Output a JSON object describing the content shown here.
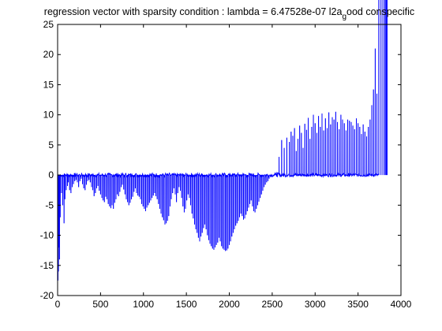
{
  "chart_data": {
    "type": "line",
    "title": {
      "main": "regression vector with sparsity condition : lambda = 6.47528e-07 l2a",
      "subscript": "g",
      "tail": "ood conspecific"
    },
    "xlabel": "",
    "ylabel": "",
    "xlim": [
      0,
      4000
    ],
    "ylim": [
      -20,
      25
    ],
    "xticks": [
      0,
      500,
      1000,
      1500,
      2000,
      2500,
      3000,
      3500,
      4000
    ],
    "yticks": [
      -20,
      -15,
      -10,
      -5,
      0,
      5,
      10,
      15,
      20,
      25
    ],
    "grid": false,
    "legend": "none",
    "series": [
      {
        "color": "#0000ff",
        "spike_x": [
          5,
          10,
          15,
          22,
          30,
          45,
          60,
          75,
          85,
          100,
          115,
          125,
          140,
          155,
          170,
          185,
          200,
          215,
          230,
          245,
          260,
          275,
          290,
          305,
          320,
          335,
          350,
          365,
          380,
          395,
          410,
          425,
          440,
          455,
          470,
          485,
          500,
          515,
          530,
          545,
          560,
          575,
          590,
          605,
          620,
          635,
          650,
          665,
          680,
          695,
          710,
          725,
          740,
          755,
          770,
          785,
          800,
          815,
          830,
          845,
          860,
          875,
          890,
          905,
          920,
          935,
          950,
          965,
          980,
          995,
          1010,
          1025,
          1040,
          1055,
          1070,
          1085,
          1100,
          1115,
          1130,
          1145,
          1160,
          1175,
          1190,
          1205,
          1220,
          1235,
          1250,
          1265,
          1280,
          1295,
          1310,
          1325,
          1340,
          1355,
          1370,
          1385,
          1400,
          1415,
          1430,
          1445,
          1460,
          1475,
          1490,
          1505,
          1520,
          1535,
          1550,
          1565,
          1580,
          1595,
          1610,
          1625,
          1640,
          1655,
          1670,
          1685,
          1700,
          1715,
          1730,
          1745,
          1760,
          1775,
          1790,
          1805,
          1820,
          1835,
          1850,
          1865,
          1880,
          1895,
          1910,
          1925,
          1940,
          1955,
          1970,
          1985,
          2000,
          2015,
          2030,
          2045,
          2060,
          2075,
          2090,
          2105,
          2120,
          2135,
          2150,
          2165,
          2180,
          2195,
          2210,
          2225,
          2240,
          2255,
          2270,
          2285,
          2300,
          2315,
          2330,
          2345,
          2360,
          2375,
          2390,
          2405,
          2420,
          2435,
          2450,
          2465,
          2480,
          2495,
          2510,
          2525,
          2540,
          2555,
          2580,
          2610,
          2640,
          2670,
          2700,
          2720,
          2740,
          2760,
          2780,
          2800,
          2820,
          2840,
          2860,
          2880,
          2900,
          2920,
          2940,
          2960,
          2980,
          3000,
          3020,
          3040,
          3060,
          3080,
          3100,
          3120,
          3140,
          3160,
          3180,
          3200,
          3220,
          3240,
          3260,
          3280,
          3300,
          3320,
          3340,
          3360,
          3380,
          3400,
          3420,
          3440,
          3460,
          3480,
          3500,
          3520,
          3540,
          3560,
          3580,
          3600,
          3620,
          3640,
          3660,
          3680,
          3700,
          3720,
          3740,
          3760,
          3780,
          3800,
          3815,
          3825,
          3832,
          3840
        ],
        "spike_y": [
          -17.5,
          -16,
          -12,
          -14,
          -7,
          -3,
          -5,
          -8,
          -4,
          -2.5,
          -1.8,
          -1.2,
          -2.5,
          -3,
          -2,
          -1.5,
          -1,
          -0.8,
          -1.2,
          -2,
          -1,
          -0.6,
          -1.5,
          -2.2,
          -2.5,
          -1.6,
          -1,
          -0.8,
          -1.2,
          -2,
          -2.5,
          -3.5,
          -3,
          -2.2,
          -1.8,
          -2.6,
          -3.2,
          -3.8,
          -4.2,
          -4.5,
          -3.6,
          -4,
          -4.8,
          -5.2,
          -5.5,
          -5,
          -5.6,
          -4.6,
          -4,
          -3.2,
          -3.5,
          -2.8,
          -2,
          -1.6,
          -2.4,
          -3.2,
          -4,
          -4.5,
          -5,
          -4.6,
          -4,
          -3.6,
          -2.8,
          -2.2,
          -3,
          -3.4,
          -3.6,
          -4,
          -4.8,
          -5.2,
          -5.6,
          -6,
          -5.4,
          -5,
          -4.6,
          -4.2,
          -3.8,
          -3.4,
          -3,
          -3.5,
          -4,
          -4.8,
          -5.6,
          -6.4,
          -7,
          -7.5,
          -8.2,
          -8,
          -7.6,
          -6.8,
          -5.2,
          -4,
          -3,
          -2.2,
          -3.2,
          -4.5,
          -3,
          -2,
          -2.6,
          -3.8,
          -5.2,
          -6.2,
          -5.6,
          -4.2,
          -3.2,
          -3.8,
          -5,
          -6.4,
          -7.2,
          -8.2,
          -9,
          -9.6,
          -10.4,
          -11,
          -10.2,
          -9.6,
          -8.8,
          -8.2,
          -9,
          -10,
          -10.8,
          -11.4,
          -11.8,
          -12.2,
          -12.4,
          -12,
          -11.6,
          -11.2,
          -10.4,
          -11,
          -11.8,
          -12.2,
          -12.4,
          -12.6,
          -12.5,
          -12.2,
          -11.6,
          -11,
          -10.2,
          -9.6,
          -9,
          -8.4,
          -8,
          -7.6,
          -7,
          -6.4,
          -6.8,
          -7.4,
          -7.2,
          -6.6,
          -6,
          -5.4,
          -4.8,
          -4.2,
          -5.2,
          -6,
          -6.2,
          -5.6,
          -5,
          -4.4,
          -3.8,
          -3.2,
          -2.6,
          -2,
          -1.6,
          -1.2,
          -1,
          -0.6,
          -0.3,
          -0.2,
          -0.1,
          0.2,
          0.3,
          0.5,
          3,
          5.8,
          4.5,
          6.2,
          5.5,
          7.2,
          6.5,
          7.8,
          4,
          6,
          8.2,
          7,
          4.5,
          8.5,
          7.5,
          9.5,
          6,
          8,
          10,
          8.6,
          7,
          9.8,
          8,
          10.2,
          7.4,
          9.4,
          7.8,
          10.4,
          8.4,
          9.6,
          9.2,
          10.5,
          8.8,
          7.6,
          10,
          9.2,
          8.6,
          7.4,
          9.2,
          9,
          8.8,
          8.2,
          7.6,
          9.4,
          8.6,
          8,
          6.8,
          8.4,
          7.2,
          6.4,
          8,
          9.2,
          11.6,
          14.2,
          21,
          13.5
        ],
        "baseline_noise": 0.35
      }
    ]
  }
}
